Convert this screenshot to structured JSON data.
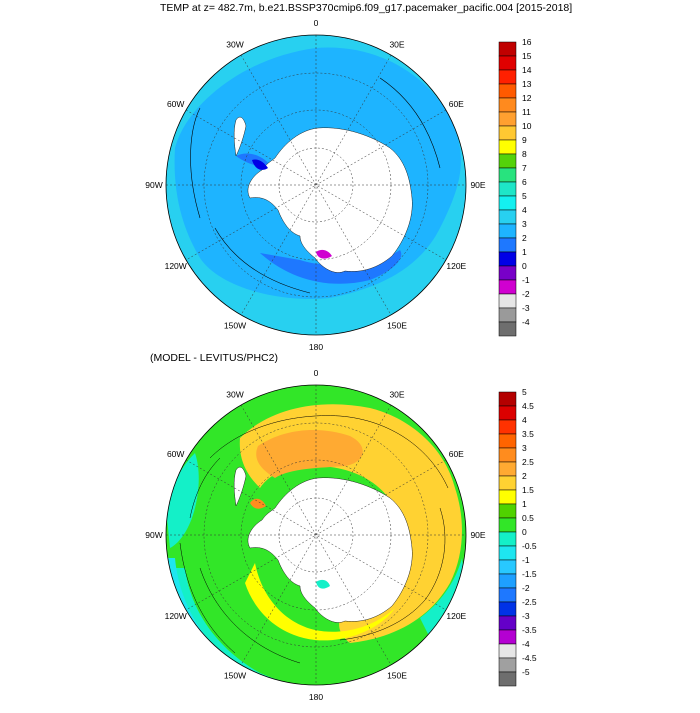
{
  "header": {
    "title": "TEMP at z= 482.7m, b.e21.BSSP370cmip6.f09_g17.pacemaker_pacific.004 [2015-2018]"
  },
  "top_panel": {
    "lon_labels": [
      "0",
      "30E",
      "60E",
      "90E",
      "120E",
      "150E",
      "180",
      "150W",
      "120W",
      "90W",
      "60W",
      "30W"
    ],
    "colorbar": {
      "levels": [
        "16",
        "15",
        "14",
        "13",
        "12",
        "11",
        "10",
        "9",
        "8",
        "7",
        "6",
        "5",
        "4",
        "3",
        "2",
        "1",
        "0",
        "-1",
        "-2",
        "-3",
        "-4"
      ],
      "colors": [
        "#c00000",
        "#e00000",
        "#ff2000",
        "#ff5a00",
        "#ff8a1e",
        "#ffa030",
        "#ffc832",
        "#ffff00",
        "#54d20a",
        "#28e37e",
        "#1ee6c8",
        "#14f0f0",
        "#28d0f0",
        "#1eb4ff",
        "#1e78ff",
        "#0000e6",
        "#7800c8",
        "#d000d0",
        "#e6e6e6",
        "#9a9a9a",
        "#6e6e6e"
      ]
    }
  },
  "bottom_panel": {
    "title": "(MODEL - LEVITUS/PHC2)",
    "lon_labels": [
      "0",
      "30E",
      "60E",
      "90E",
      "120E",
      "150E",
      "180",
      "150W",
      "120W",
      "90W",
      "60W",
      "30W"
    ],
    "colorbar": {
      "levels": [
        "5",
        "4.5",
        "4",
        "3.5",
        "3",
        "2.5",
        "2",
        "1.5",
        "1",
        "0.5",
        "0",
        "-0.5",
        "-1",
        "-1.5",
        "-2",
        "-2.5",
        "-3",
        "-3.5",
        "-4",
        "-4.5",
        "-5"
      ],
      "colors": [
        "#b40000",
        "#dc0000",
        "#ff3200",
        "#ff6400",
        "#ff8c1e",
        "#ffaa32",
        "#ffd232",
        "#ffff00",
        "#50d200",
        "#32e628",
        "#14f0c8",
        "#1ee6f0",
        "#28c8ff",
        "#1ea0ff",
        "#1e78ff",
        "#0032e6",
        "#6400c8",
        "#b400d2",
        "#e6e6e6",
        "#a0a0a0",
        "#6e6e6e"
      ]
    }
  }
}
